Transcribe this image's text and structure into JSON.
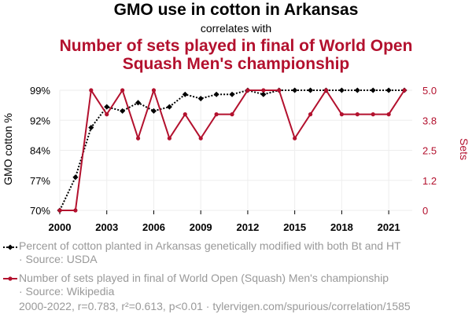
{
  "header": {
    "title": "GMO use in cotton in Arkansas",
    "subtitle": "correlates with",
    "title2": "Number of sets played in final of World Open Squash Men's championship"
  },
  "chart_data": {
    "type": "line",
    "x": [
      2000,
      2001,
      2002,
      2003,
      2004,
      2005,
      2006,
      2007,
      2008,
      2009,
      2010,
      2011,
      2012,
      2013,
      2014,
      2015,
      2016,
      2017,
      2018,
      2019,
      2020,
      2021,
      2022
    ],
    "xticks": [
      "2000",
      "2003",
      "2006",
      "2009",
      "2012",
      "2015",
      "2018",
      "2021"
    ],
    "xlim": [
      2000,
      2022.5
    ],
    "left_axis": {
      "label": "GMO cotton %",
      "ticks": [
        "70%",
        "77%",
        "84%",
        "92%",
        "99%"
      ],
      "ylim": [
        70,
        99
      ]
    },
    "right_axis": {
      "label": "Sets",
      "ticks": [
        "0",
        "1.2",
        "2.5",
        "3.8",
        "5.0"
      ],
      "ylim": [
        0,
        5
      ]
    },
    "series": [
      {
        "name": "Percent of cotton planted in Arkansas genetically modified with both Bt and HT",
        "axis": "left",
        "color": "#000000",
        "style": "dotted",
        "values": [
          70,
          78,
          90,
          95,
          94,
          96,
          94,
          95,
          98,
          97,
          98,
          98,
          99,
          98,
          99,
          99,
          99,
          99,
          99,
          99,
          99,
          99,
          99
        ]
      },
      {
        "name": "Number of sets played in final of World Open (Squash) Men's championship",
        "axis": "right",
        "color": "#b3112e",
        "style": "solid",
        "values": [
          0,
          0,
          5,
          4,
          5,
          3,
          5,
          3,
          4,
          3,
          4,
          4,
          5,
          5,
          5,
          3,
          4,
          5,
          4,
          4,
          4,
          4,
          5
        ]
      }
    ],
    "grid": true
  },
  "legend": {
    "item1_line1": "Percent of cotton planted in Arkansas genetically modified with both Bt and HT",
    "item1_line2": "· Source: USDA",
    "item2_line1": "Number of sets played in final of World Open (Squash) Men's championship",
    "item2_line2": "· Source: Wikipedia"
  },
  "footer": {
    "text": "2000-2022, r=0.783, r²=0.613, p<0.01 · tylervigen.com/spurious/correlation/1585"
  },
  "colors": {
    "series1": "#000000",
    "series2": "#b3112e",
    "grid": "#eeeeee",
    "muted": "#999999"
  }
}
